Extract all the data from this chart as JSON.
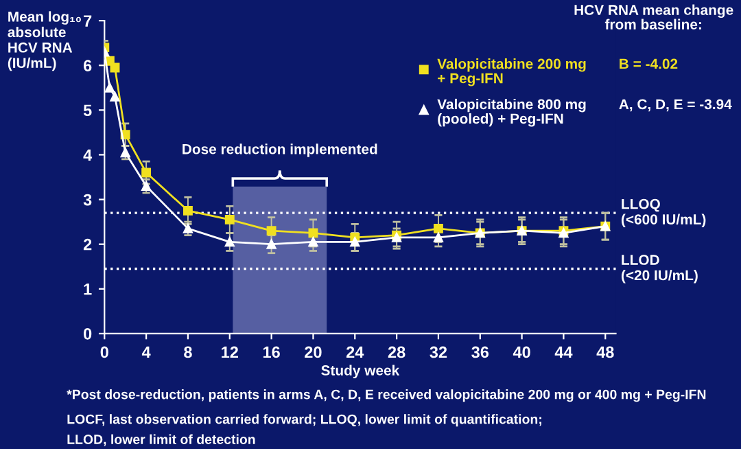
{
  "chart_data": {
    "type": "line",
    "ylabel": "Mean log₁₀ absolute HCV RNA (IU/mL)",
    "xlabel": "Study week",
    "legend_title": "HCV RNA mean change from baseline:",
    "legend": "top right",
    "x": [
      0,
      0.5,
      1,
      2,
      4,
      8,
      12,
      16,
      20,
      24,
      28,
      32,
      36,
      40,
      44,
      48
    ],
    "series": [
      {
        "name": "Valopicitabine 200 mg + Peg-IFN",
        "color": "#f0e020",
        "marker": "square",
        "values": [
          6.4,
          6.1,
          5.95,
          4.45,
          3.6,
          2.75,
          2.55,
          2.3,
          2.25,
          2.15,
          2.2,
          2.35,
          2.25,
          2.3,
          2.3,
          2.4
        ],
        "errors": [
          0.15,
          null,
          null,
          0.25,
          0.25,
          0.3,
          0.3,
          0.3,
          0.3,
          0.3,
          0.3,
          0.3,
          0.3,
          0.3,
          0.3,
          0.3
        ]
      },
      {
        "name": "Valopicitabine 800 mg (pooled) + Peg-IFN",
        "color": "#ffffff",
        "marker": "triangle",
        "values": [
          6.3,
          5.5,
          5.3,
          4.05,
          3.3,
          2.35,
          2.05,
          2.0,
          2.05,
          2.05,
          2.15,
          2.15,
          2.25,
          2.3,
          2.25,
          2.4
        ],
        "errors": [
          0.15,
          null,
          null,
          0.15,
          0.15,
          0.15,
          0.2,
          0.2,
          0.2,
          0.2,
          0.2,
          0.2,
          0.25,
          0.25,
          0.3,
          0.3
        ]
      }
    ],
    "xlim": [
      0,
      49
    ],
    "xticks": [
      0,
      4,
      8,
      12,
      16,
      20,
      24,
      28,
      32,
      36,
      40,
      44,
      48
    ],
    "ylim": [
      0,
      7
    ],
    "yticks": [
      0,
      1,
      2,
      3,
      4,
      5,
      6,
      7
    ],
    "ref_lines": [
      {
        "axis": "y",
        "value": 2.7,
        "label": "LLOQ (<600 IU/mL)",
        "color": "#ffffff",
        "line_style": "dotted"
      },
      {
        "axis": "y",
        "value": 1.45,
        "label": "LLOD (<20 IU/mL)",
        "color": "#ffffff",
        "line_style": "dotted"
      }
    ],
    "bands": [
      {
        "axis": "x",
        "from": 12.3,
        "to": 21.3,
        "label": "Dose reduction implemented",
        "color": "#8890c8"
      }
    ],
    "annotations": [
      "B = -4.02",
      "A, C, D, E = -3.94",
      "*Post dose-reduction, patients in arms A, C, D, E received valopicitabine 200 mg or 400 mg + Peg-IFN",
      "LOCF, last observation carried forward; LLOQ, lower limit of quantification;",
      "LLOD, lower limit of detection"
    ],
    "grid": false
  }
}
